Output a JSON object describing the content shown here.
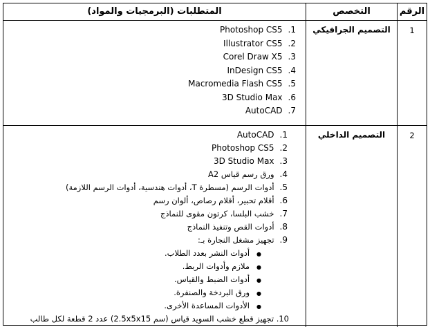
{
  "table": {
    "headers": {
      "number": "الرقم",
      "specialization": "التخصص",
      "requirements": "المتطلبات (البرمجيات والمواد)"
    },
    "rows": [
      {
        "number": "1",
        "specialization": "التصميم الجرافيكي",
        "items": [
          {
            "marker": "1.",
            "text": "Photoshop CS5"
          },
          {
            "marker": "2.",
            "text": "Illustrator CS5"
          },
          {
            "marker": "3.",
            "text": "Corel Draw X5"
          },
          {
            "marker": "4.",
            "text": "InDesign CS5"
          },
          {
            "marker": "5.",
            "text": "Macromedia Flash CS5"
          },
          {
            "marker": "6.",
            "text": "3D Studio Max"
          },
          {
            "marker": "7.",
            "text": "AutoCAD"
          }
        ]
      },
      {
        "number": "2",
        "specialization": "التصميم الداخلي",
        "items": [
          {
            "marker": "1.",
            "text": "AutoCAD"
          },
          {
            "marker": "2.",
            "text": "Photoshop CS5"
          },
          {
            "marker": "3.",
            "text": "3D Studio Max"
          },
          {
            "marker": "4.",
            "text": "ورق رسم قياس A2"
          },
          {
            "marker": "5.",
            "text": "أدوات الرسم (مسطرة T، أدوات هندسية، أدوات الرسم اللازمة)"
          },
          {
            "marker": "6.",
            "text": "أقلام تحبير، أقلام رصاص، ألوان رسم"
          },
          {
            "marker": "7.",
            "text": "خشب البلسا، كرتون مقوى للنماذج"
          },
          {
            "marker": "8.",
            "text": "أدوات القص وتنفيذ النماذج"
          },
          {
            "marker": "9.",
            "text": "تجهيز مشغل النجارة بـ:"
          }
        ],
        "bullets": [
          "أدوات النشر بعدد الطلاب.",
          "ملازم وأدوات الربط.",
          "أدوات الضبط والقياس.",
          "ورق البردخة والصنفرة.",
          "الأدوات المساعدة الأخرى."
        ],
        "bullet_glyph": "●",
        "footer_line": "10. تجهيز قطع خشب السويد قياس ‪(2.5x5x15 سم)‬ عدد 2 قطعة لكل طالب"
      }
    ]
  }
}
